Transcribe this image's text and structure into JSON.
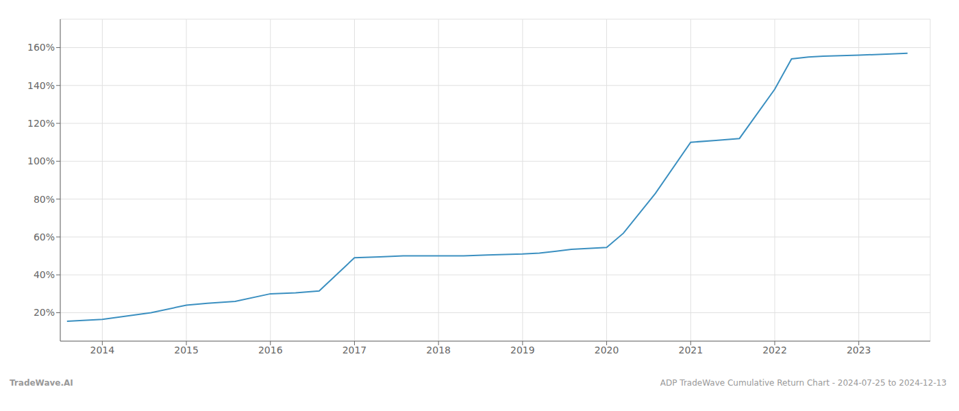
{
  "chart_data": {
    "type": "line",
    "x": [
      2013.58,
      2014.0,
      2014.58,
      2015.0,
      2015.25,
      2015.58,
      2016.0,
      2016.3,
      2016.58,
      2017.0,
      2017.3,
      2017.58,
      2018.0,
      2018.3,
      2018.58,
      2019.0,
      2019.2,
      2019.4,
      2019.58,
      2020.0,
      2020.2,
      2020.58,
      2021.0,
      2021.3,
      2021.58,
      2022.0,
      2022.2,
      2022.4,
      2022.58,
      2023.0,
      2023.58
    ],
    "values": [
      15.5,
      16.5,
      20.0,
      24.0,
      25.0,
      26.0,
      30.0,
      30.5,
      31.5,
      49.0,
      49.5,
      50.0,
      50.0,
      50.0,
      50.5,
      51.0,
      51.5,
      52.5,
      53.5,
      54.5,
      62.0,
      83.0,
      110.0,
      111.0,
      112.0,
      138.0,
      154.0,
      155.0,
      155.5,
      156.0,
      157.0
    ],
    "color": "#3a8fc0",
    "xlim": [
      2013.5,
      2023.85
    ],
    "ylim": [
      5,
      175
    ],
    "xticks": [
      2014,
      2015,
      2016,
      2017,
      2018,
      2019,
      2020,
      2021,
      2022,
      2023
    ],
    "yticks": [
      {
        "value": 20,
        "label": "20%"
      },
      {
        "value": 40,
        "label": "40%"
      },
      {
        "value": 60,
        "label": "60%"
      },
      {
        "value": 80,
        "label": "80%"
      },
      {
        "value": 100,
        "label": "100%"
      },
      {
        "value": 120,
        "label": "120%"
      },
      {
        "value": 140,
        "label": "140%"
      },
      {
        "value": 160,
        "label": "160%"
      }
    ],
    "grid": true,
    "annotations": [
      "TradeWave.AI",
      "ADP TradeWave Cumulative Return Chart - 2024-07-25 to 2024-12-13"
    ]
  }
}
